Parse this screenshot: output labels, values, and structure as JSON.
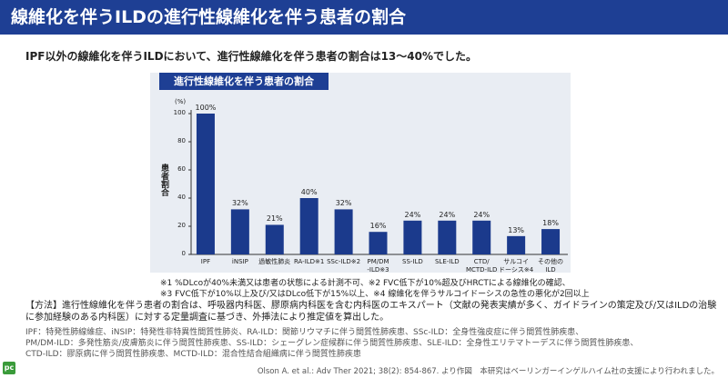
{
  "header": {
    "title": "線維化を伴うILDの進行性線維化を伴う患者の割合"
  },
  "subtitle": "IPF以外の線維化を伴うILDにおいて、進行性線維化を伴う患者の割合は13～40%でした。",
  "chart_data": {
    "type": "bar",
    "title": "進行性線維化を伴う患者の割合",
    "y_unit": "(%)",
    "ylabel": "患者割合",
    "categories": [
      "IPF",
      "iNSIP",
      "過敏性肺炎",
      "RA-ILD※1",
      "SSc-ILD※2",
      "PM/DM\n-ILD※3",
      "SS-ILD",
      "SLE-ILD",
      "CTD/\nMCTD-ILD",
      "サルコイ\nドーシス※4",
      "その他の\nILD"
    ],
    "values": [
      100,
      32,
      21,
      40,
      32,
      16,
      24,
      24,
      24,
      13,
      18
    ],
    "value_labels": [
      "100%",
      "32%",
      "21%",
      "40%",
      "32%",
      "16%",
      "24%",
      "24%",
      "24%",
      "13%",
      "18%"
    ],
    "color": "#1b3a8c",
    "ylim": [
      0,
      100
    ],
    "yticks": [
      0,
      20,
      40,
      60,
      80,
      100
    ]
  },
  "footnotes": [
    "※1 %DLcoが40%未満又は患者の状態による計測不可、※2 FVC低下が10%超及びHRCTによる線維化の確認、",
    "※3 FVC低下が10%以上及び/又はDLco低下が15%以上、※4 線維化を伴うサルコイドーシスの急性の悪化が2回以上"
  ],
  "methods": "【方法】進行性線維化を伴う患者の割合は、呼吸器内科医、膠原病内科医を含む内科医のエキスパート（文献の発表実績が多く、ガイドラインの策定及び/又はILDの治験に参加経験のある内科医）に対する定量調査に基づき、外挿法により推定値を算出した。",
  "abbreviations": [
    "IPF：特発性肺線維症、iNSIP：特発性非特異性間質性肺炎、RA-ILD：関節リウマチに伴う間質性肺疾患、SSc-ILD：全身性強皮症に伴う間質性肺疾患、",
    "PM/DM-ILD：多発性筋炎/皮膚筋炎に伴う間質性肺疾患、SS-ILD：シェーグレン症候群に伴う間質性肺疾患、SLE-ILD：全身性エリテマトーデスに伴う間質性肺疾患、",
    "CTD-ILD：膠原病に伴う間質性肺疾患、MCTD-ILD：混合性結合組織病に伴う間質性肺疾患"
  ],
  "citation": "Olson A. et al.: Adv Ther 2021; 38(2): 854-867. より作図　本研究はベーリンガーインゲルハイム社の支援により行われました。",
  "logo": "pc"
}
